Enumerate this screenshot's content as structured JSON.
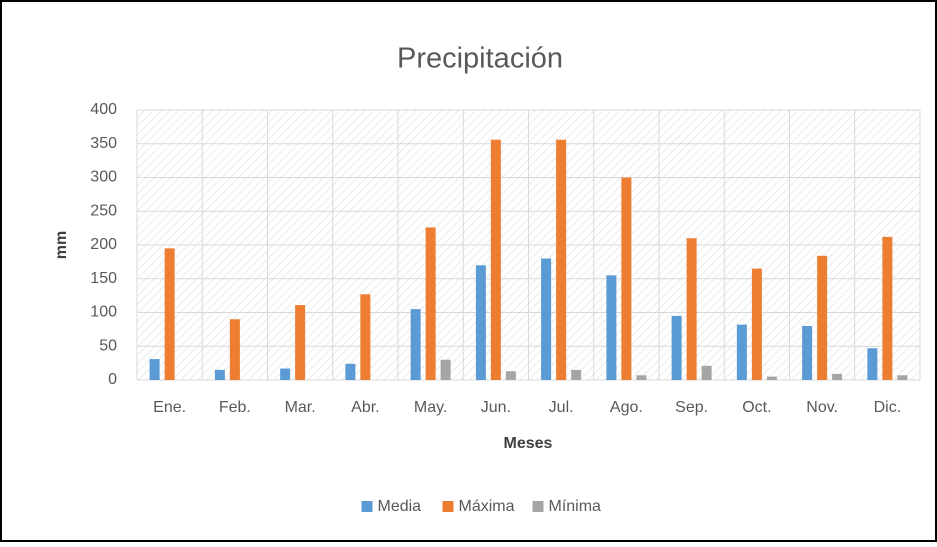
{
  "chart_data": {
    "type": "bar",
    "title": "Precipitación",
    "x_label": "Meses",
    "y_label": "mm",
    "categories": [
      "Ene.",
      "Feb.",
      "Mar.",
      "Abr.",
      "May.",
      "Jun.",
      "Jul.",
      "Ago.",
      "Sep.",
      "Oct.",
      "Nov.",
      "Dic."
    ],
    "series": [
      {
        "name": "Media",
        "color": "#5b9bd5",
        "values": [
          31,
          15,
          17,
          24,
          105,
          170,
          180,
          155,
          95,
          82,
          80,
          47
        ]
      },
      {
        "name": "Máxima",
        "color": "#ed7d31",
        "values": [
          195,
          90,
          111,
          127,
          226,
          356,
          356,
          300,
          210,
          165,
          184,
          212
        ]
      },
      {
        "name": "Mínima",
        "color": "#a5a5a5",
        "values": [
          0,
          0,
          0,
          0,
          30,
          13,
          15,
          7,
          21,
          5,
          9,
          7
        ]
      }
    ],
    "ylim": [
      0,
      400
    ],
    "yticks": [
      0,
      50,
      100,
      150,
      200,
      250,
      300,
      350,
      400
    ],
    "grid": true,
    "legend": "bottom"
  }
}
